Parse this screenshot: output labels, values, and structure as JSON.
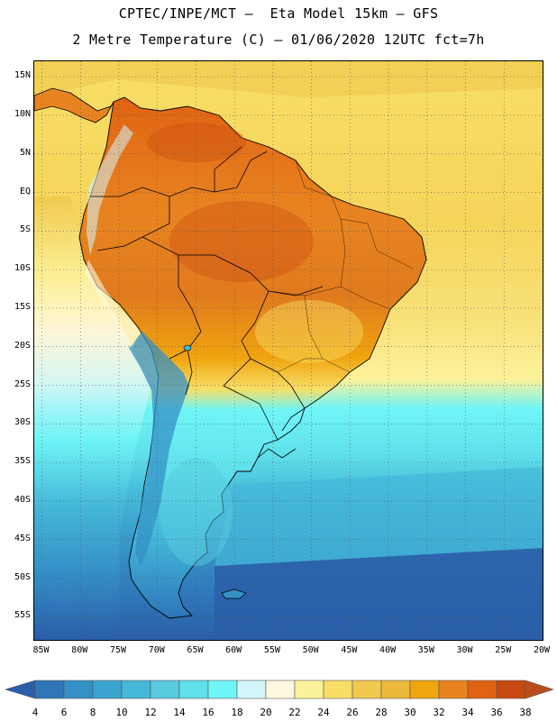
{
  "header": {
    "title_line1": "CPTEC/INPE/MCT –  Eta Model 15km – GFS",
    "title_line2": "2 Metre Temperature (C) – 01/06/2020 12UTC fct=7h"
  },
  "axes": {
    "lat_ticks": [
      "15N",
      "10N",
      "5N",
      "EQ",
      "5S",
      "10S",
      "15S",
      "20S",
      "25S",
      "30S",
      "35S",
      "40S",
      "45S",
      "50S",
      "55S"
    ],
    "lat_values": [
      15,
      10,
      5,
      0,
      -5,
      -10,
      -15,
      -20,
      -25,
      -30,
      -35,
      -40,
      -45,
      -50,
      -55
    ],
    "lon_ticks": [
      "85W",
      "80W",
      "75W",
      "70W",
      "65W",
      "60W",
      "55W",
      "50W",
      "45W",
      "40W",
      "35W",
      "30W",
      "25W",
      "20W"
    ],
    "lon_values": [
      -85,
      -80,
      -75,
      -70,
      -65,
      -60,
      -55,
      -50,
      -45,
      -40,
      -35,
      -30,
      -25,
      -20
    ],
    "lat_range": [
      -58,
      17
    ],
    "lon_range": [
      -86,
      -20
    ]
  },
  "legend": {
    "unit": "C",
    "levels": [
      "4",
      "6",
      "8",
      "10",
      "12",
      "14",
      "16",
      "18",
      "20",
      "22",
      "24",
      "26",
      "28",
      "30",
      "32",
      "34",
      "36",
      "38"
    ],
    "colors": [
      "#2a5ea8",
      "#2f75b8",
      "#3590c6",
      "#3aa3cf",
      "#45b8d8",
      "#57cbe0",
      "#5fe0ea",
      "#6ff5f7",
      "#d2f6fb",
      "#fff8e0",
      "#fcf29b",
      "#f8de66",
      "#f0c94e",
      "#ecb93b",
      "#f0a40e",
      "#e88420",
      "#e06313",
      "#c84912",
      "#b94e1c"
    ]
  }
}
